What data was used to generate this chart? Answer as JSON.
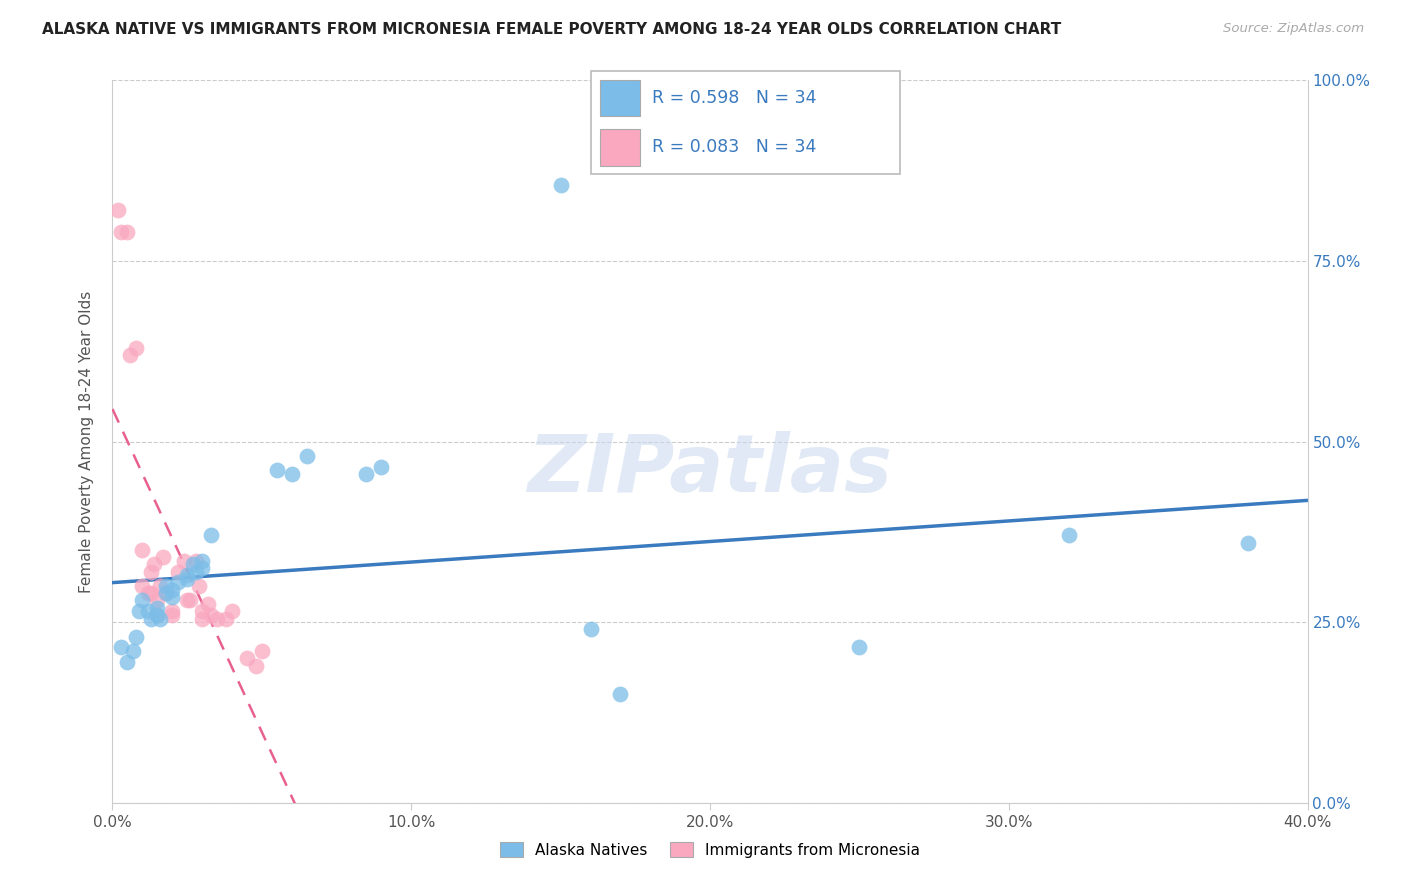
{
  "title": "ALASKA NATIVE VS IMMIGRANTS FROM MICRONESIA FEMALE POVERTY AMONG 18-24 YEAR OLDS CORRELATION CHART",
  "source": "Source: ZipAtlas.com",
  "ylabel": "Female Poverty Among 18-24 Year Olds",
  "xlabel_ticks": [
    "0.0%",
    "10.0%",
    "20.0%",
    "30.0%",
    "40.0%"
  ],
  "xlabel_vals": [
    0.0,
    0.1,
    0.2,
    0.3,
    0.4
  ],
  "ylabel_ticks": [
    "0.0%",
    "25.0%",
    "50.0%",
    "75.0%",
    "100.0%"
  ],
  "ylabel_vals": [
    0.0,
    0.25,
    0.5,
    0.75,
    1.0
  ],
  "xlim": [
    0.0,
    0.4
  ],
  "ylim": [
    0.0,
    1.0
  ],
  "r_blue": 0.598,
  "r_pink": 0.083,
  "n_blue": 34,
  "n_pink": 34,
  "legend1_label": "Alaska Natives",
  "legend2_label": "Immigrants from Micronesia",
  "watermark": "ZIPatlas",
  "blue_color": "#7bbde8",
  "pink_color": "#f9a8c0",
  "blue_line_color": "#3a7abf",
  "pink_line_color": "#e86090",
  "background_color": "#ffffff",
  "grid_color": "#cccccc",
  "alaska_x": [
    0.003,
    0.005,
    0.007,
    0.008,
    0.009,
    0.01,
    0.012,
    0.013,
    0.015,
    0.015,
    0.016,
    0.018,
    0.018,
    0.02,
    0.02,
    0.022,
    0.025,
    0.025,
    0.027,
    0.028,
    0.03,
    0.03,
    0.033,
    0.055,
    0.06,
    0.065,
    0.085,
    0.09,
    0.15,
    0.16,
    0.17,
    0.25,
    0.32,
    0.38
  ],
  "alaska_y": [
    0.215,
    0.195,
    0.21,
    0.23,
    0.265,
    0.28,
    0.265,
    0.255,
    0.27,
    0.26,
    0.255,
    0.3,
    0.29,
    0.295,
    0.285,
    0.305,
    0.315,
    0.31,
    0.33,
    0.32,
    0.335,
    0.325,
    0.37,
    0.46,
    0.455,
    0.48,
    0.455,
    0.465,
    0.855,
    0.24,
    0.15,
    0.215,
    0.37,
    0.36
  ],
  "micronesia_x": [
    0.002,
    0.003,
    0.005,
    0.006,
    0.008,
    0.01,
    0.01,
    0.012,
    0.013,
    0.013,
    0.014,
    0.015,
    0.015,
    0.016,
    0.017,
    0.018,
    0.02,
    0.02,
    0.022,
    0.024,
    0.025,
    0.026,
    0.028,
    0.029,
    0.03,
    0.03,
    0.032,
    0.033,
    0.035,
    0.038,
    0.04,
    0.045,
    0.048,
    0.05
  ],
  "micronesia_y": [
    0.82,
    0.79,
    0.79,
    0.62,
    0.63,
    0.35,
    0.3,
    0.29,
    0.32,
    0.29,
    0.33,
    0.28,
    0.26,
    0.3,
    0.34,
    0.29,
    0.26,
    0.265,
    0.32,
    0.335,
    0.28,
    0.28,
    0.335,
    0.3,
    0.265,
    0.255,
    0.275,
    0.26,
    0.255,
    0.255,
    0.265,
    0.2,
    0.19,
    0.21
  ]
}
